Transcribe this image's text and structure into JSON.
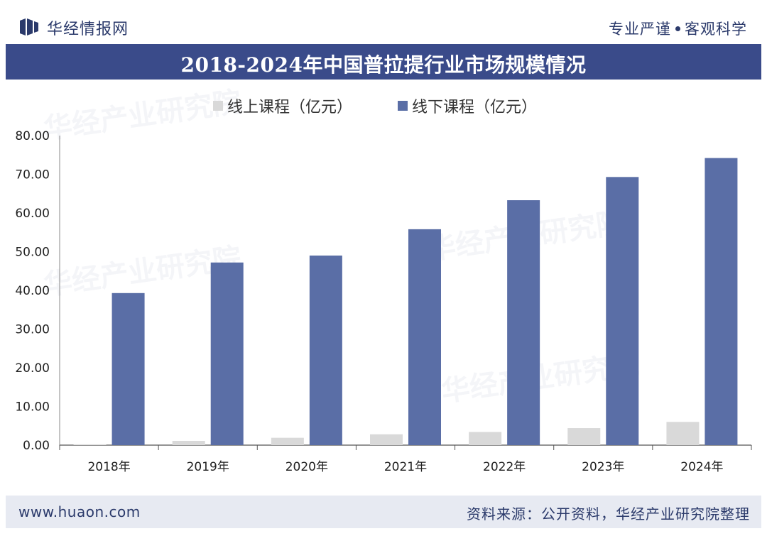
{
  "header": {
    "brand": "华经情报网",
    "slogan_left": "专业严谨",
    "slogan_right": "客观科学"
  },
  "chart_data": {
    "type": "bar",
    "title": "2018-2024年中国普拉提行业市场规模情况",
    "categories": [
      "2018年",
      "2019年",
      "2020年",
      "2021年",
      "2022年",
      "2023年",
      "2024年"
    ],
    "series": [
      {
        "name": "线上课程（亿元）",
        "color": "#d9d9d9",
        "values": [
          0.2,
          1.1,
          1.9,
          2.8,
          3.4,
          4.4,
          6.0
        ]
      },
      {
        "name": "线下课程（亿元）",
        "color": "#5a6ea6",
        "values": [
          39.3,
          47.2,
          49.0,
          55.8,
          63.3,
          69.3,
          74.2
        ]
      }
    ],
    "ylim": [
      0,
      80
    ],
    "yticks": [
      "0.00",
      "10.00",
      "20.00",
      "30.00",
      "40.00",
      "50.00",
      "60.00",
      "70.00",
      "80.00"
    ],
    "xlabel": "",
    "ylabel": "",
    "legend_position": "top"
  },
  "footer": {
    "website": "www.huaon.com",
    "source": "资料来源：公开资料，华经产业研究院整理"
  },
  "watermark": "华经产业研究院"
}
